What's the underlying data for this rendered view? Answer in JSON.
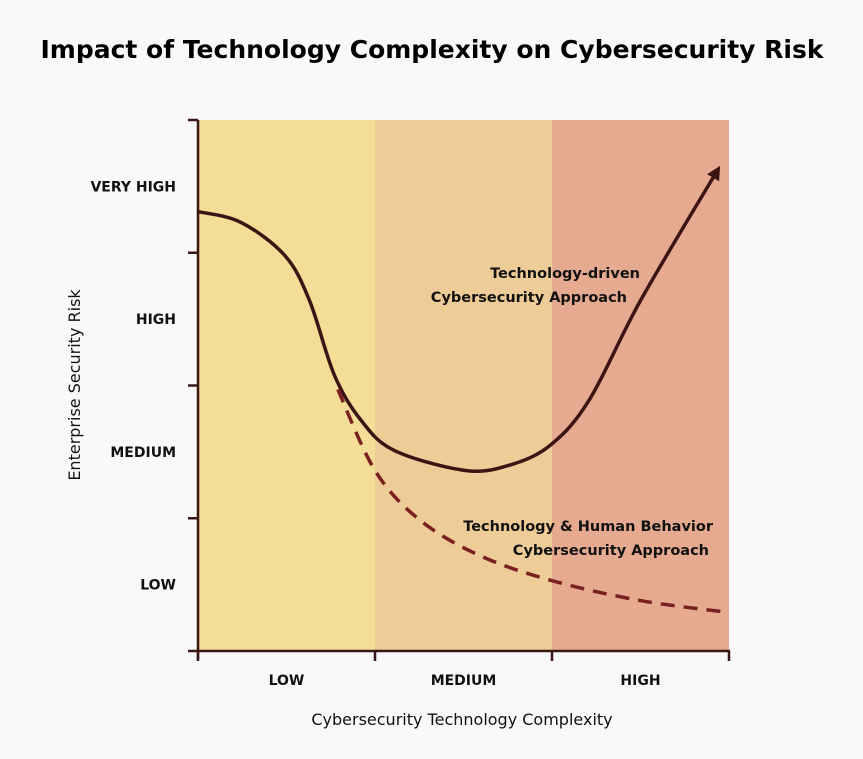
{
  "chart_data": {
    "type": "line",
    "title": "Impact of Technology Complexity on Cybersecurity Risk",
    "xlabel": "Cybersecurity Technology Complexity",
    "ylabel": "Enterprise Security Risk",
    "x_categories": [
      "LOW",
      "MEDIUM",
      "HIGH"
    ],
    "y_categories": [
      "LOW",
      "MEDIUM",
      "HIGH",
      "VERY HIGH"
    ],
    "xlim": [
      0,
      3
    ],
    "ylim": [
      0,
      4
    ],
    "bands": [
      {
        "category": "LOW",
        "color": "#f3dd97"
      },
      {
        "category": "MEDIUM",
        "color": "#eecc97"
      },
      {
        "category": "HIGH",
        "color": "#e6aa90"
      }
    ],
    "series": [
      {
        "name_lines": [
          "Technology-driven",
          "Cybersecurity Approach"
        ],
        "style": "solid",
        "arrow": true,
        "color": "#3d1414",
        "x": [
          0,
          0.24,
          0.49,
          0.63,
          0.77,
          0.92,
          1.11,
          1.51,
          1.76,
          1.99,
          2.21,
          2.5,
          2.93
        ],
        "y": [
          3.31,
          3.23,
          2.98,
          2.64,
          2.08,
          1.74,
          1.51,
          1.36,
          1.4,
          1.55,
          1.89,
          2.64,
          3.61
        ]
      },
      {
        "name_lines": [
          "Technology & Human Behavior",
          "Cybersecurity Approach"
        ],
        "style": "dashed",
        "arrow": false,
        "color": "#7a2020",
        "x": [
          0.79,
          1.0,
          1.25,
          1.59,
          2.0,
          2.5,
          3.0
        ],
        "y": [
          1.97,
          1.36,
          0.99,
          0.72,
          0.53,
          0.38,
          0.29
        ]
      }
    ],
    "grid": false
  }
}
